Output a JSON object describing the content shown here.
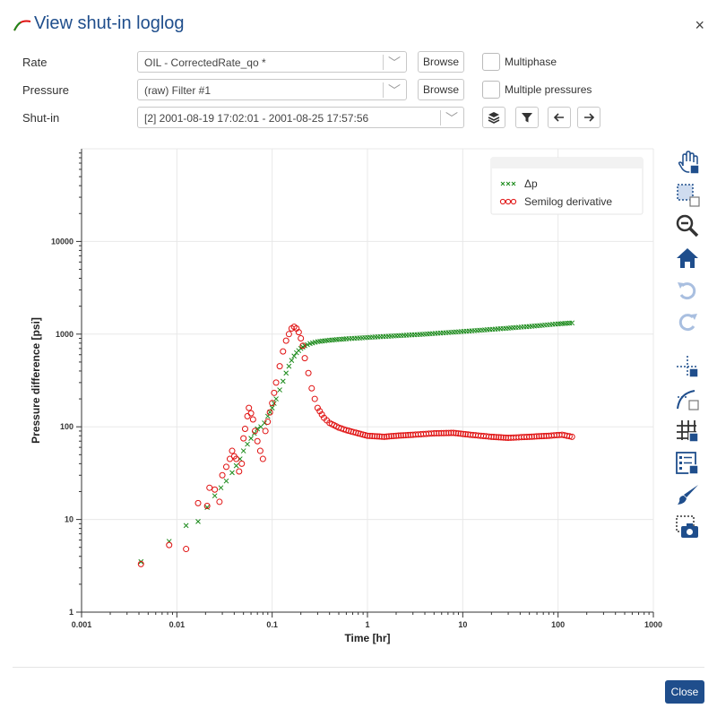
{
  "dialog": {
    "title": "View shut-in loglog",
    "close_label": "×"
  },
  "form": {
    "rate": {
      "label": "Rate",
      "value": "OIL - CorrectedRate_qo *",
      "browse": "Browse"
    },
    "pressure": {
      "label": "Pressure",
      "value": "(raw) Filter #1",
      "browse": "Browse"
    },
    "shutin": {
      "label": "Shut-in",
      "value": "[2] 2001-08-19 17:02:01 - 2001-08-25 17:57:56"
    },
    "multiphase": {
      "label": "Multiphase",
      "checked": false
    },
    "multiple_pressures": {
      "label": "Multiple pressures",
      "checked": false
    }
  },
  "footer": {
    "close_label": "Close"
  },
  "right_toolbar": [
    "pan-icon",
    "box-zoom-icon",
    "zoom-out-icon",
    "home-icon",
    "undo-icon",
    "redo-icon",
    "crosshair-icon",
    "curve-select-icon",
    "grid-icon",
    "legend-icon",
    "brush-icon",
    "camera-icon"
  ],
  "colors": {
    "accent": "#1f4e8c",
    "dp": "#1a8a1a",
    "deriv": "#e01010"
  },
  "chart_data": {
    "type": "scatter",
    "xscale": "log",
    "yscale": "log",
    "xlabel": "Time [hr]",
    "ylabel": "Pressure difference [psi]",
    "xlim": [
      0.001,
      1000
    ],
    "ylim": [
      1,
      100000
    ],
    "xticks": [
      {
        "v": 0.001,
        "label": "0.001"
      },
      {
        "v": 0.01,
        "label": "0.01"
      },
      {
        "v": 0.1,
        "label": "0.1"
      },
      {
        "v": 1,
        "label": "1"
      },
      {
        "v": 10,
        "label": "10"
      },
      {
        "v": 100,
        "label": "100"
      },
      {
        "v": 1000,
        "label": "1000"
      }
    ],
    "yticks": [
      {
        "v": 1,
        "label": "1"
      },
      {
        "v": 10,
        "label": "10"
      },
      {
        "v": 100,
        "label": "100"
      },
      {
        "v": 1000,
        "label": "1000"
      },
      {
        "v": 10000,
        "label": "10000"
      }
    ],
    "grid": true,
    "legend_position": "top-right",
    "series": [
      {
        "name": "Δp",
        "marker": "x",
        "color": "#1a8a1a",
        "points": [
          [
            0.0042,
            3.5
          ],
          [
            0.0083,
            5.8
          ],
          [
            0.0125,
            8.6
          ],
          [
            0.0167,
            9.5
          ],
          [
            0.0208,
            13.5
          ],
          [
            0.025,
            18
          ],
          [
            0.029,
            22
          ],
          [
            0.033,
            26
          ],
          [
            0.038,
            32
          ],
          [
            0.042,
            38
          ],
          [
            0.046,
            45
          ],
          [
            0.05,
            55
          ],
          [
            0.055,
            65
          ],
          [
            0.06,
            75
          ],
          [
            0.065,
            85
          ],
          [
            0.07,
            95
          ],
          [
            0.076,
            100
          ],
          [
            0.083,
            110
          ],
          [
            0.09,
            130
          ],
          [
            0.1,
            160
          ],
          [
            0.11,
            200
          ],
          [
            0.12,
            250
          ],
          [
            0.13,
            310
          ],
          [
            0.14,
            380
          ],
          [
            0.15,
            450
          ],
          [
            0.16,
            520
          ],
          [
            0.17,
            580
          ],
          [
            0.18,
            630
          ],
          [
            0.2,
            700
          ],
          [
            0.22,
            750
          ],
          [
            0.25,
            790
          ],
          [
            0.3,
            830
          ],
          [
            0.4,
            860
          ],
          [
            0.6,
            890
          ],
          [
            1,
            920
          ],
          [
            2,
            960
          ],
          [
            4,
            1000
          ],
          [
            8,
            1050
          ],
          [
            15,
            1100
          ],
          [
            30,
            1160
          ],
          [
            60,
            1230
          ],
          [
            100,
            1290
          ],
          [
            140,
            1320
          ]
        ]
      },
      {
        "name": "Semilog derivative",
        "marker": "o",
        "color": "#e01010",
        "points": [
          [
            0.0042,
            3.3
          ],
          [
            0.0083,
            5.3
          ],
          [
            0.0125,
            4.8
          ],
          [
            0.0167,
            15
          ],
          [
            0.0208,
            14
          ],
          [
            0.022,
            22
          ],
          [
            0.025,
            21
          ],
          [
            0.028,
            15.5
          ],
          [
            0.03,
            30
          ],
          [
            0.033,
            37
          ],
          [
            0.036,
            45
          ],
          [
            0.038,
            55
          ],
          [
            0.04,
            48
          ],
          [
            0.042,
            45
          ],
          [
            0.045,
            33
          ],
          [
            0.048,
            40
          ],
          [
            0.05,
            75
          ],
          [
            0.052,
            95
          ],
          [
            0.055,
            130
          ],
          [
            0.057,
            160
          ],
          [
            0.06,
            140
          ],
          [
            0.063,
            120
          ],
          [
            0.066,
            90
          ],
          [
            0.07,
            70
          ],
          [
            0.075,
            55
          ],
          [
            0.08,
            45
          ],
          [
            0.085,
            90
          ],
          [
            0.1,
            180
          ],
          [
            0.11,
            300
          ],
          [
            0.12,
            450
          ],
          [
            0.13,
            650
          ],
          [
            0.14,
            850
          ],
          [
            0.15,
            1000
          ],
          [
            0.16,
            1150
          ],
          [
            0.17,
            1200
          ],
          [
            0.18,
            1150
          ],
          [
            0.19,
            1050
          ],
          [
            0.2,
            900
          ],
          [
            0.21,
            750
          ],
          [
            0.22,
            550
          ],
          [
            0.24,
            380
          ],
          [
            0.26,
            260
          ],
          [
            0.28,
            200
          ],
          [
            0.3,
            160
          ],
          [
            0.35,
            125
          ],
          [
            0.4,
            110
          ],
          [
            0.5,
            98
          ],
          [
            0.6,
            92
          ],
          [
            0.8,
            85
          ],
          [
            1,
            80
          ],
          [
            1.5,
            78
          ],
          [
            2,
            80
          ],
          [
            3,
            82
          ],
          [
            5,
            85
          ],
          [
            8,
            86
          ],
          [
            12,
            82
          ],
          [
            20,
            78
          ],
          [
            30,
            76
          ],
          [
            50,
            78
          ],
          [
            80,
            80
          ],
          [
            110,
            82
          ],
          [
            140,
            78
          ]
        ]
      }
    ]
  }
}
